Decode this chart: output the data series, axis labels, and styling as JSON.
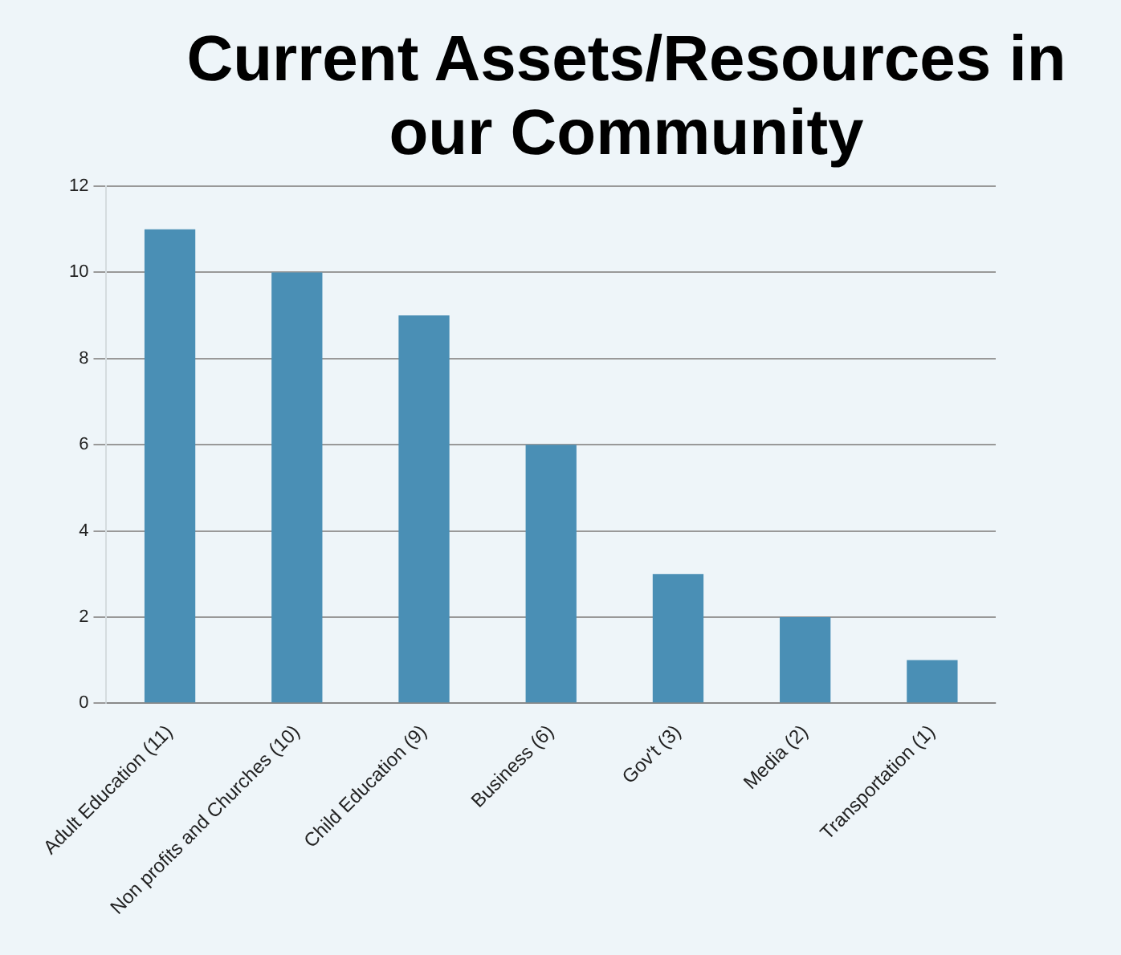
{
  "chart_data": {
    "type": "bar",
    "title": "Current Assets/Resources in our Community",
    "categories": [
      "Adult Education (11)",
      "Non profits and Churches (10)",
      "Child Education (9)",
      "Business (6)",
      "Gov't (3)",
      "Media (2)",
      "Transportation (1)"
    ],
    "values": [
      11,
      10,
      9,
      6,
      3,
      2,
      1
    ],
    "color": "#4a8fb5",
    "ylim": [
      0,
      12
    ],
    "yticks": [
      0,
      2,
      4,
      6,
      8,
      10,
      12
    ],
    "grid": "y"
  }
}
